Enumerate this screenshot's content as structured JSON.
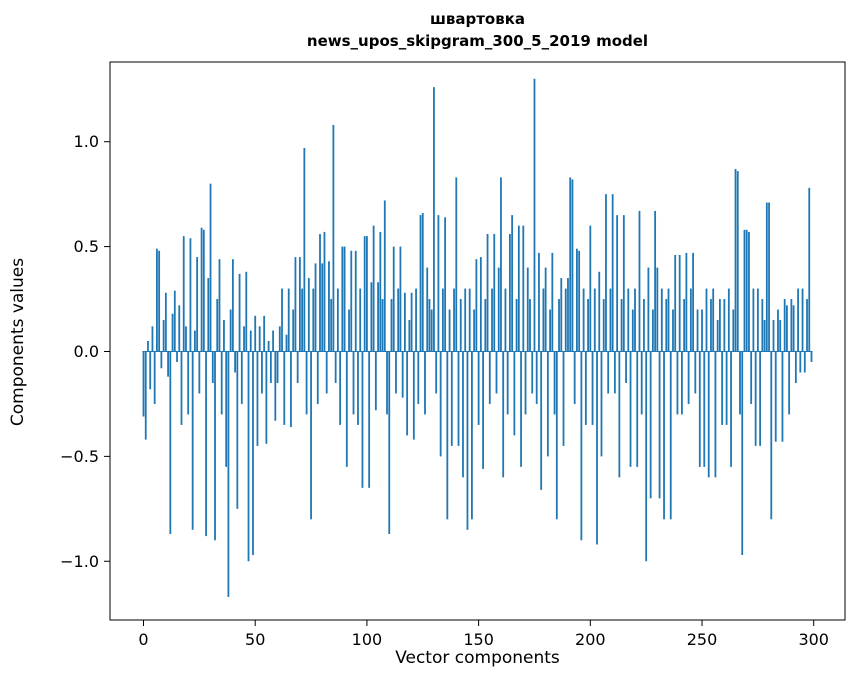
{
  "title_lines": [
    "швартовка",
    "news_upos_skipgram_300_5_2019 model"
  ],
  "chart_data": {
    "type": "bar",
    "title": "швартовка\nnews_upos_skipgram_300_5_2019 model",
    "xlabel": "Vector components",
    "ylabel": "Components values",
    "xlim": [
      -15,
      314
    ],
    "ylim": [
      -1.28,
      1.38
    ],
    "x_ticks": [
      0,
      50,
      100,
      150,
      200,
      250,
      300
    ],
    "x_tick_labels": [
      "0",
      "50",
      "100",
      "150",
      "200",
      "250",
      "300"
    ],
    "y_ticks": [
      -1.0,
      -0.5,
      0.0,
      0.5,
      1.0
    ],
    "y_tick_labels": [
      "−1.0",
      "−0.5",
      "0.0",
      "0.5",
      "1.0"
    ],
    "bar_color": "#1f77b4",
    "grid": false,
    "legend": null,
    "values": [
      -0.31,
      -0.42,
      0.05,
      -0.18,
      0.12,
      -0.25,
      0.49,
      0.48,
      -0.08,
      0.15,
      0.28,
      -0.12,
      -0.87,
      0.18,
      0.29,
      -0.05,
      0.22,
      -0.35,
      0.55,
      0.12,
      -0.3,
      0.54,
      -0.85,
      0.1,
      0.45,
      -0.2,
      0.59,
      0.58,
      -0.88,
      0.35,
      0.8,
      -0.15,
      -0.9,
      0.25,
      0.44,
      -0.3,
      0.15,
      -0.55,
      -1.17,
      0.2,
      0.44,
      -0.1,
      -0.75,
      0.37,
      -0.25,
      0.12,
      0.38,
      -1.0,
      0.1,
      -0.97,
      0.17,
      -0.45,
      0.12,
      -0.2,
      0.17,
      -0.44,
      0.05,
      -0.15,
      0.1,
      -0.33,
      -0.15,
      0.12,
      0.3,
      -0.35,
      0.08,
      0.3,
      -0.36,
      0.2,
      0.45,
      -0.15,
      0.45,
      0.3,
      0.97,
      -0.3,
      0.35,
      -0.8,
      0.3,
      0.42,
      -0.25,
      0.56,
      0.42,
      0.57,
      -0.2,
      0.43,
      0.25,
      1.08,
      -0.15,
      0.3,
      -0.35,
      0.5,
      0.5,
      -0.55,
      0.2,
      0.48,
      -0.3,
      0.48,
      -0.35,
      0.3,
      -0.65,
      0.55,
      0.55,
      -0.65,
      0.33,
      0.6,
      -0.28,
      0.33,
      0.57,
      0.25,
      0.72,
      -0.3,
      -0.87,
      0.25,
      0.5,
      -0.2,
      0.3,
      0.5,
      -0.22,
      0.28,
      -0.4,
      0.15,
      0.28,
      -0.42,
      0.3,
      -0.25,
      0.65,
      0.66,
      -0.3,
      0.4,
      0.25,
      0.2,
      1.26,
      -0.2,
      0.65,
      -0.5,
      0.3,
      0.64,
      -0.8,
      0.2,
      -0.45,
      0.3,
      0.83,
      -0.45,
      0.25,
      -0.6,
      0.3,
      -0.85,
      0.3,
      -0.8,
      0.2,
      0.44,
      -0.35,
      0.45,
      -0.56,
      0.25,
      0.56,
      -0.25,
      0.3,
      0.56,
      -0.2,
      0.4,
      0.83,
      -0.6,
      0.3,
      -0.3,
      0.56,
      0.65,
      -0.4,
      0.25,
      0.6,
      -0.55,
      0.6,
      -0.3,
      0.4,
      0.25,
      -0.2,
      1.3,
      -0.25,
      0.47,
      -0.66,
      0.3,
      0.4,
      -0.5,
      0.2,
      0.47,
      -0.3,
      -0.8,
      0.25,
      0.35,
      -0.45,
      0.3,
      0.35,
      0.83,
      0.82,
      -0.25,
      0.49,
      0.48,
      -0.9,
      0.3,
      -0.35,
      0.25,
      0.6,
      -0.35,
      0.3,
      -0.92,
      0.38,
      -0.5,
      0.25,
      0.75,
      -0.2,
      0.3,
      0.75,
      -0.2,
      0.65,
      -0.6,
      0.25,
      0.65,
      -0.15,
      0.3,
      -0.55,
      0.2,
      0.3,
      -0.55,
      0.67,
      -0.3,
      0.25,
      -1.0,
      0.4,
      -0.7,
      0.2,
      0.67,
      0.4,
      -0.7,
      0.3,
      -0.8,
      0.25,
      0.3,
      -0.8,
      0.2,
      0.46,
      -0.3,
      0.46,
      -0.3,
      0.25,
      0.47,
      -0.25,
      0.3,
      0.47,
      -0.2,
      0.2,
      -0.55,
      0.2,
      -0.55,
      0.3,
      -0.6,
      0.25,
      0.3,
      -0.6,
      0.15,
      0.25,
      -0.35,
      0.25,
      -0.35,
      0.3,
      -0.55,
      0.2,
      0.87,
      0.86,
      -0.3,
      -0.97,
      0.58,
      0.58,
      0.57,
      -0.25,
      0.3,
      -0.45,
      0.3,
      -0.45,
      0.25,
      0.15,
      0.71,
      0.71,
      -0.8,
      0.15,
      -0.43,
      0.2,
      0.15,
      -0.43,
      0.25,
      0.22,
      -0.3,
      0.25,
      0.22,
      -0.15,
      0.3,
      -0.1,
      0.3,
      -0.1,
      0.25,
      0.78,
      -0.05
    ]
  }
}
